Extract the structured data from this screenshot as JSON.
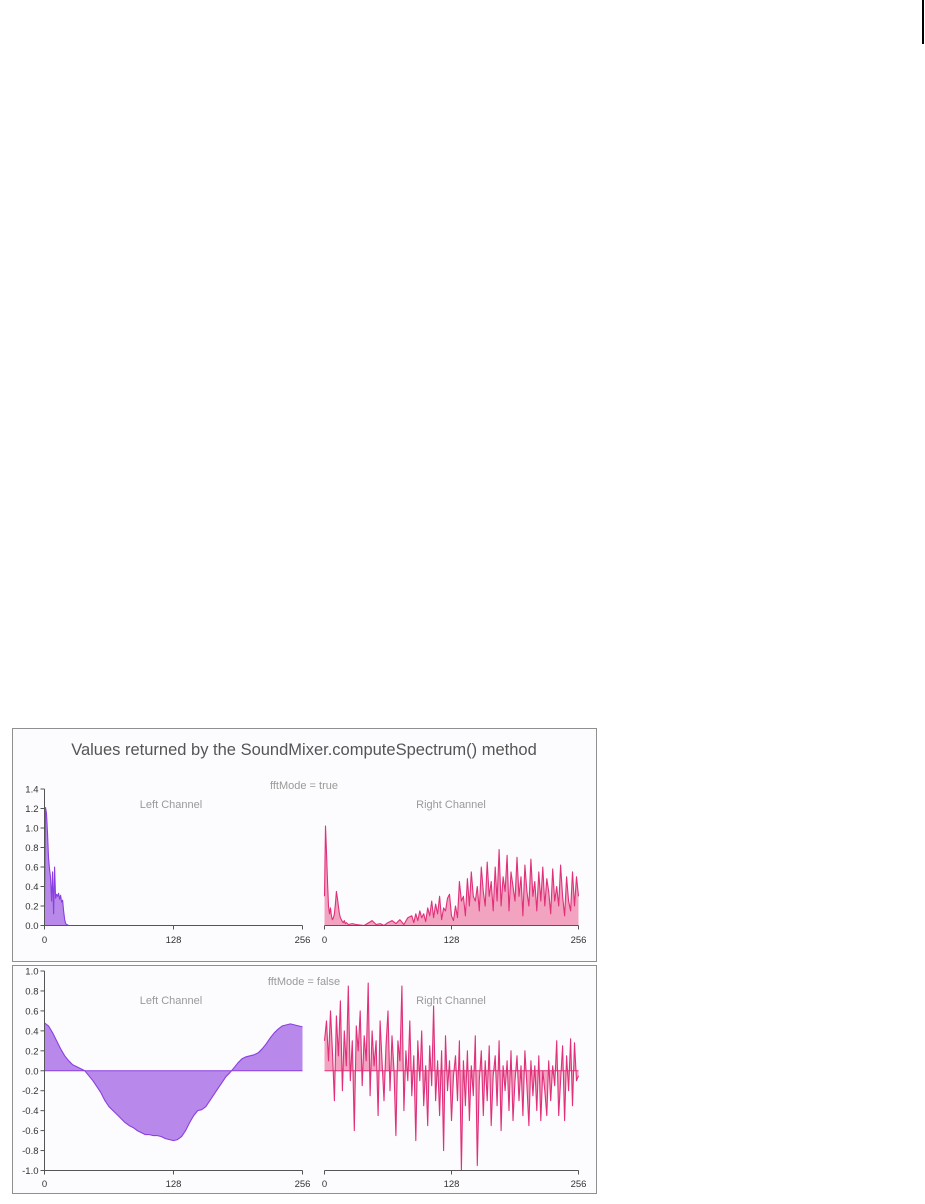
{
  "title": "Values returned by the SoundMixer.computeSpectrum() method",
  "colors": {
    "left_line": "#8a3fe0",
    "left_fill": "#b888ea",
    "right_line": "#e0307a",
    "right_fill": "#f2a3c0"
  },
  "chart_data": [
    {
      "type": "area",
      "mode_label": "fftMode = true",
      "ylim": [
        0,
        1.4
      ],
      "y_ticks": [
        "0.0",
        "0.2",
        "0.4",
        "0.6",
        "0.8",
        "1.0",
        "1.2",
        "1.4"
      ],
      "xlim": [
        0,
        256
      ],
      "x_ticks": [
        "0",
        "128",
        "256"
      ],
      "series": [
        {
          "name": "Left Channel",
          "x": [
            0,
            1,
            2,
            3,
            4,
            5,
            6,
            7,
            8,
            9,
            10,
            11,
            12,
            13,
            14,
            15,
            16,
            17,
            18,
            19,
            20,
            21,
            22,
            24,
            30,
            60,
            128,
            200,
            256
          ],
          "y": [
            0.2,
            1.21,
            1.15,
            0.95,
            0.7,
            0.58,
            0.5,
            0.25,
            0.55,
            0.12,
            0.6,
            0.28,
            0.32,
            0.3,
            0.33,
            0.27,
            0.31,
            0.24,
            0.26,
            0.15,
            0.06,
            0.02,
            0.01,
            0.0,
            0.0,
            0.0,
            0.0,
            0.0,
            0.0
          ]
        },
        {
          "name": "Right Channel",
          "x": [
            0,
            1,
            2,
            3,
            4,
            5,
            6,
            7,
            8,
            9,
            10,
            11,
            12,
            13,
            14,
            15,
            16,
            17,
            18,
            19,
            20,
            21,
            22,
            24,
            28,
            32,
            40,
            48,
            52,
            56,
            60,
            64,
            68,
            72,
            76,
            80,
            84,
            88,
            90,
            92,
            94,
            96,
            98,
            100,
            102,
            104,
            106,
            108,
            110,
            112,
            114,
            116,
            118,
            120,
            122,
            124,
            126,
            128,
            130,
            132,
            134,
            136,
            138,
            140,
            142,
            144,
            146,
            148,
            150,
            152,
            154,
            156,
            158,
            160,
            162,
            164,
            166,
            168,
            170,
            172,
            174,
            176,
            178,
            180,
            182,
            184,
            186,
            188,
            190,
            192,
            194,
            196,
            198,
            200,
            202,
            204,
            206,
            208,
            210,
            212,
            214,
            216,
            218,
            220,
            222,
            224,
            226,
            228,
            230,
            232,
            234,
            236,
            238,
            240,
            242,
            244,
            246,
            248,
            250,
            252,
            254,
            256
          ],
          "y": [
            0.3,
            1.02,
            0.75,
            0.45,
            0.2,
            0.12,
            0.18,
            0.1,
            0.06,
            0.08,
            0.12,
            0.22,
            0.35,
            0.28,
            0.2,
            0.12,
            0.08,
            0.06,
            0.04,
            0.03,
            0.05,
            0.02,
            0.03,
            0.01,
            0.02,
            0.01,
            0.0,
            0.05,
            0.01,
            0.02,
            0.0,
            0.03,
            0.05,
            0.02,
            0.06,
            0.01,
            0.08,
            0.1,
            0.03,
            0.12,
            0.05,
            0.15,
            0.08,
            0.12,
            0.04,
            0.18,
            0.1,
            0.25,
            0.08,
            0.22,
            0.12,
            0.3,
            0.06,
            0.18,
            0.15,
            0.28,
            0.32,
            0.1,
            0.05,
            0.2,
            0.08,
            0.45,
            0.25,
            0.3,
            0.1,
            0.48,
            0.2,
            0.55,
            0.3,
            0.25,
            0.4,
            0.15,
            0.6,
            0.35,
            0.2,
            0.65,
            0.3,
            0.45,
            0.15,
            0.6,
            0.25,
            0.78,
            0.2,
            0.5,
            0.35,
            0.72,
            0.15,
            0.55,
            0.4,
            0.25,
            0.7,
            0.3,
            0.5,
            0.1,
            0.62,
            0.35,
            0.2,
            0.68,
            0.3,
            0.45,
            0.15,
            0.55,
            0.25,
            0.6,
            0.2,
            0.48,
            0.35,
            0.12,
            0.58,
            0.25,
            0.4,
            0.2,
            0.62,
            0.3,
            0.1,
            0.5,
            0.25,
            0.15,
            0.55,
            0.2,
            0.5,
            0.3
          ]
        }
      ]
    },
    {
      "type": "area",
      "mode_label": "fftMode = false",
      "ylim": [
        -1.0,
        1.0
      ],
      "y_ticks": [
        "-1.0",
        "-0.8",
        "-0.6",
        "-0.4",
        "-0.2",
        "0.0",
        "0.2",
        "0.4",
        "0.6",
        "0.8",
        "1.0"
      ],
      "xlim": [
        0,
        256
      ],
      "x_ticks": [
        "0",
        "128",
        "256"
      ],
      "series": [
        {
          "name": "Left Channel",
          "x": [
            0,
            4,
            8,
            12,
            16,
            20,
            24,
            28,
            32,
            36,
            40,
            44,
            48,
            52,
            56,
            60,
            64,
            68,
            72,
            76,
            80,
            84,
            88,
            92,
            96,
            100,
            104,
            108,
            112,
            116,
            120,
            124,
            128,
            132,
            136,
            140,
            144,
            148,
            152,
            156,
            160,
            164,
            168,
            172,
            176,
            180,
            184,
            188,
            192,
            196,
            200,
            204,
            208,
            212,
            216,
            220,
            224,
            228,
            232,
            236,
            240,
            244,
            248,
            252,
            256
          ],
          "y": [
            0.48,
            0.45,
            0.38,
            0.3,
            0.22,
            0.15,
            0.1,
            0.06,
            0.04,
            0.02,
            0.0,
            -0.05,
            -0.1,
            -0.16,
            -0.22,
            -0.3,
            -0.36,
            -0.4,
            -0.44,
            -0.48,
            -0.52,
            -0.55,
            -0.57,
            -0.6,
            -0.62,
            -0.64,
            -0.64,
            -0.65,
            -0.65,
            -0.66,
            -0.68,
            -0.69,
            -0.7,
            -0.69,
            -0.66,
            -0.6,
            -0.52,
            -0.45,
            -0.4,
            -0.39,
            -0.36,
            -0.3,
            -0.24,
            -0.18,
            -0.12,
            -0.06,
            -0.02,
            0.03,
            0.08,
            0.12,
            0.14,
            0.15,
            0.16,
            0.18,
            0.22,
            0.27,
            0.33,
            0.38,
            0.42,
            0.45,
            0.46,
            0.47,
            0.46,
            0.45,
            0.44
          ]
        },
        {
          "name": "Right Channel",
          "x": [
            0,
            2,
            4,
            6,
            8,
            10,
            12,
            14,
            16,
            18,
            20,
            22,
            24,
            26,
            28,
            30,
            32,
            34,
            36,
            38,
            40,
            42,
            44,
            46,
            48,
            50,
            52,
            54,
            56,
            58,
            60,
            62,
            64,
            66,
            68,
            70,
            72,
            74,
            76,
            78,
            80,
            82,
            84,
            86,
            88,
            90,
            92,
            94,
            96,
            98,
            100,
            102,
            104,
            106,
            108,
            110,
            112,
            114,
            116,
            118,
            120,
            122,
            124,
            126,
            128,
            130,
            132,
            134,
            136,
            138,
            140,
            142,
            144,
            146,
            148,
            150,
            152,
            154,
            156,
            158,
            160,
            162,
            164,
            166,
            168,
            170,
            172,
            174,
            176,
            178,
            180,
            182,
            184,
            186,
            188,
            190,
            192,
            194,
            196,
            198,
            200,
            202,
            204,
            206,
            208,
            210,
            212,
            214,
            216,
            218,
            220,
            222,
            224,
            226,
            228,
            230,
            232,
            234,
            236,
            238,
            240,
            242,
            244,
            246,
            248,
            250,
            252,
            254,
            256
          ],
          "y": [
            0.3,
            0.5,
            0.1,
            0.6,
            0.2,
            -0.3,
            0.55,
            0.15,
            0.7,
            -0.2,
            0.4,
            0.05,
            0.85,
            -0.1,
            0.3,
            -0.6,
            0.45,
            0.2,
            0.6,
            -0.15,
            0.35,
            0.1,
            0.88,
            -0.25,
            0.4,
            0.05,
            0.3,
            -0.45,
            0.5,
            0.1,
            -0.3,
            0.25,
            0.6,
            -0.2,
            0.35,
            0.0,
            -0.65,
            0.3,
            0.1,
            0.85,
            -0.4,
            0.2,
            -0.1,
            0.5,
            -0.25,
            0.15,
            -0.7,
            0.3,
            -0.1,
            0.4,
            -0.35,
            0.05,
            -0.55,
            0.25,
            -0.15,
            0.65,
            -0.3,
            0.1,
            -0.45,
            0.2,
            -0.8,
            0.35,
            -0.2,
            0.1,
            -0.5,
            -0.05,
            0.15,
            -0.3,
            0.3,
            -1.0,
            0.1,
            -0.35,
            0.2,
            -0.5,
            0.05,
            -0.25,
            0.35,
            -0.95,
            -0.1,
            0.2,
            -0.45,
            0.1,
            -0.3,
            0.25,
            -0.55,
            -0.05,
            0.15,
            -0.35,
            0.3,
            -0.6,
            0.05,
            -0.2,
            0.1,
            -0.4,
            0.2,
            -0.5,
            -0.1,
            0.15,
            -0.3,
            0.05,
            -0.45,
            0.2,
            -0.15,
            -0.55,
            0.1,
            -0.25,
            0.05,
            -0.4,
            0.15,
            -0.5,
            0.0,
            -0.2,
            -0.45,
            0.1,
            -0.3,
            0.05,
            -0.15,
            0.3,
            -0.45,
            -0.1,
            0.25,
            -0.5,
            0.15,
            -0.2,
            0.32,
            -0.35,
            0.28,
            -0.1,
            -0.05
          ]
        }
      ]
    }
  ]
}
